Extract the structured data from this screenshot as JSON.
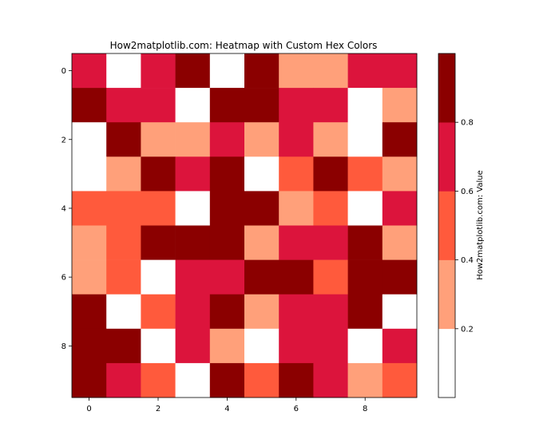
{
  "chart_data": {
    "type": "heatmap",
    "title": "How2matplotlib.com: Heatmap with Custom Hex Colors",
    "xlabel": "",
    "ylabel": "",
    "x_ticks": [
      0,
      2,
      4,
      6,
      8
    ],
    "y_ticks": [
      0,
      2,
      4,
      6,
      8
    ],
    "rows": 10,
    "cols": 10,
    "color_bins": [
      {
        "min": 0.0,
        "max": 0.2,
        "color": "#FFFFFF"
      },
      {
        "min": 0.2,
        "max": 0.4,
        "color": "#FFA07A"
      },
      {
        "min": 0.4,
        "max": 0.6,
        "color": "#FF5A3C"
      },
      {
        "min": 0.6,
        "max": 0.8,
        "color": "#DC143C"
      },
      {
        "min": 0.8,
        "max": 1.0,
        "color": "#8B0000"
      }
    ],
    "values_binned": [
      [
        3,
        0,
        3,
        4,
        0,
        4,
        1,
        1,
        3,
        3
      ],
      [
        4,
        3,
        3,
        0,
        4,
        4,
        3,
        3,
        0,
        1
      ],
      [
        0,
        4,
        1,
        1,
        3,
        1,
        3,
        1,
        0,
        4
      ],
      [
        0,
        1,
        4,
        3,
        4,
        0,
        2,
        4,
        2,
        1
      ],
      [
        2,
        2,
        2,
        0,
        4,
        4,
        1,
        2,
        0,
        3
      ],
      [
        1,
        2,
        4,
        4,
        4,
        1,
        3,
        3,
        4,
        1
      ],
      [
        1,
        2,
        0,
        3,
        3,
        4,
        4,
        2,
        4,
        4
      ],
      [
        4,
        0,
        2,
        3,
        4,
        1,
        3,
        3,
        4,
        0
      ],
      [
        4,
        4,
        0,
        3,
        1,
        0,
        3,
        3,
        0,
        3
      ],
      [
        4,
        3,
        2,
        0,
        4,
        2,
        4,
        3,
        1,
        2
      ]
    ],
    "colorbar": {
      "label": "How2matplotlib.com: Value",
      "ticks": [
        "0.2",
        "0.4",
        "0.6",
        "0.8"
      ]
    }
  }
}
